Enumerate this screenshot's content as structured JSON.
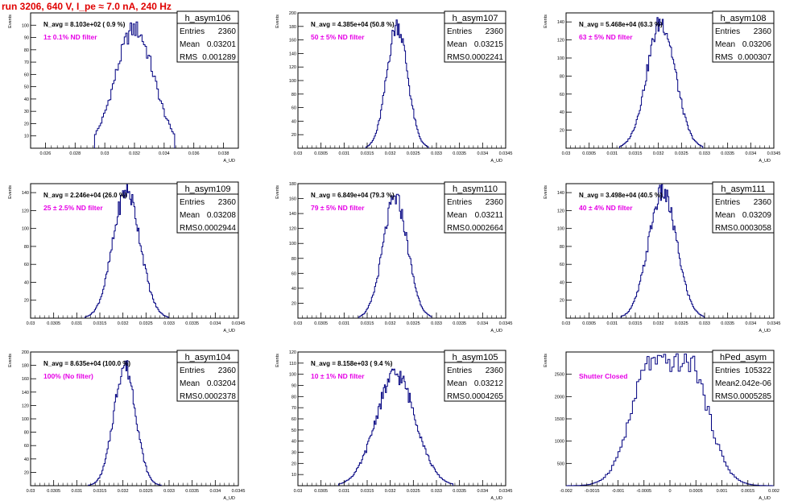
{
  "page_title": "run 3206,   640 V, I_pe ≈ 7.0 nA, 240 Hz",
  "stats_labels": {
    "entries": "Entries",
    "mean": "Mean",
    "rms": "RMS"
  },
  "colors": {
    "hist": "#000080",
    "annotation": "#e600e6",
    "title": "#e00000",
    "frame": "#000000"
  },
  "chart_data": [
    {
      "type": "histogram",
      "name": "h_asym106",
      "nlabel": "N_avg = 8.103e+02 ( 0.9 %)",
      "filter": "1± 0.1% ND filter",
      "stats": {
        "entries": "2360",
        "mean": "0.03201",
        "rms": "0.001289"
      },
      "ylabel": "Events",
      "xlabel": "A_UD",
      "xlim": [
        0.025,
        0.039
      ],
      "ylim": [
        0,
        110
      ],
      "xticks": [
        0.026,
        0.028,
        0.03,
        0.032,
        0.034,
        0.036,
        0.038
      ],
      "xticklabels": [
        "0.026",
        "0.028",
        "0.03",
        "0.032",
        "0.034",
        "0.036",
        "0.038"
      ],
      "yticks": [
        10,
        20,
        30,
        40,
        50,
        60,
        70,
        80,
        90,
        100
      ],
      "yticklabels": [
        "10",
        "20",
        "30",
        "40",
        "50",
        "60",
        "70",
        "80",
        "90",
        "100"
      ],
      "mean": 0.03201,
      "sigma": 0.001289,
      "peak": 97,
      "binw": 0.0001,
      "bins": 54
    },
    {
      "type": "histogram",
      "name": "h_asym107",
      "nlabel": "N_avg = 4.385e+04 (50.8 %)",
      "filter": "50 ± 5% ND filter",
      "stats": {
        "entries": "2360",
        "mean": "0.03215",
        "rms": "0.0002241"
      },
      "ylabel": "Events",
      "xlabel": "A_UD",
      "xlim": [
        0.03,
        0.0345
      ],
      "ylim": [
        0,
        200
      ],
      "xticks": [
        0.03,
        0.0305,
        0.031,
        0.0315,
        0.032,
        0.0325,
        0.033,
        0.0335,
        0.034,
        0.0345
      ],
      "xticklabels": [
        "0.03",
        "0.0305",
        "0.031",
        "0.0315",
        "0.032",
        "0.0325",
        "0.033",
        "0.0335",
        "0.034",
        "0.0345"
      ],
      "yticks": [
        20,
        40,
        60,
        80,
        100,
        120,
        140,
        160,
        180,
        200
      ],
      "yticklabels": [
        "20",
        "40",
        "60",
        "80",
        "100",
        "120",
        "140",
        "160",
        "180",
        "200"
      ],
      "mean": 0.03215,
      "sigma": 0.0002241,
      "peak": 182,
      "binw": 2.25e-05,
      "bins": 60
    },
    {
      "type": "histogram",
      "name": "h_asym108",
      "nlabel": "N_avg = 5.468e+04 (63.3 %)",
      "filter": "63 ± 5% ND filter",
      "stats": {
        "entries": "2360",
        "mean": "0.03206",
        "rms": "0.000307"
      },
      "ylabel": "Events",
      "xlabel": "A_UD",
      "xlim": [
        0.03,
        0.0345
      ],
      "ylim": [
        0,
        150
      ],
      "xticks": [
        0.03,
        0.0305,
        0.031,
        0.0315,
        0.032,
        0.0325,
        0.033,
        0.0335,
        0.034,
        0.0345
      ],
      "xticklabels": [
        "0.03",
        "0.0305",
        "0.031",
        "0.0315",
        "0.032",
        "0.0325",
        "0.033",
        "0.0335",
        "0.034",
        "0.0345"
      ],
      "yticks": [
        20,
        40,
        60,
        80,
        100,
        120,
        140
      ],
      "yticklabels": [
        "20",
        "40",
        "60",
        "80",
        "100",
        "120",
        "140"
      ],
      "mean": 0.03206,
      "sigma": 0.000307,
      "peak": 140,
      "binw": 2.25e-05,
      "bins": 80
    },
    {
      "type": "histogram",
      "name": "h_asym109",
      "nlabel": "N_avg = 2.246e+04 (26.0 %)",
      "filter": "25 ± 2.5% ND filter",
      "stats": {
        "entries": "2360",
        "mean": "0.03208",
        "rms": "0.0002944"
      },
      "ylabel": "Events",
      "xlabel": "A_UD",
      "xlim": [
        0.03,
        0.0345
      ],
      "ylim": [
        0,
        150
      ],
      "xticks": [
        0.03,
        0.0305,
        0.031,
        0.0315,
        0.032,
        0.0325,
        0.033,
        0.0335,
        0.034,
        0.0345
      ],
      "xticklabels": [
        "0.03",
        "0.0305",
        "0.031",
        "0.0315",
        "0.032",
        "0.0325",
        "0.033",
        "0.0335",
        "0.034",
        "0.0345"
      ],
      "yticks": [
        20,
        40,
        60,
        80,
        100,
        120,
        140
      ],
      "yticklabels": [
        "20",
        "40",
        "60",
        "80",
        "100",
        "120",
        "140"
      ],
      "mean": 0.03208,
      "sigma": 0.0002944,
      "peak": 142,
      "binw": 2.25e-05,
      "bins": 80
    },
    {
      "type": "histogram",
      "name": "h_asym110",
      "nlabel": "N_avg = 6.849e+04 (79.3 %)",
      "filter": "79 ± 5% ND filter",
      "stats": {
        "entries": "2360",
        "mean": "0.03211",
        "rms": "0.0002664"
      },
      "ylabel": "Events",
      "xlabel": "A_UD",
      "xlim": [
        0.03,
        0.0345
      ],
      "ylim": [
        0,
        180
      ],
      "xticks": [
        0.03,
        0.0305,
        0.031,
        0.0315,
        0.032,
        0.0325,
        0.033,
        0.0335,
        0.034,
        0.0345
      ],
      "xticklabels": [
        "0.03",
        "0.0305",
        "0.031",
        "0.0315",
        "0.032",
        "0.0325",
        "0.033",
        "0.0335",
        "0.034",
        "0.0345"
      ],
      "yticks": [
        20,
        40,
        60,
        80,
        100,
        120,
        140,
        160,
        180
      ],
      "yticklabels": [
        "20",
        "40",
        "60",
        "80",
        "100",
        "120",
        "140",
        "160",
        "180"
      ],
      "mean": 0.03211,
      "sigma": 0.0002664,
      "peak": 160,
      "binw": 2.25e-05,
      "bins": 70
    },
    {
      "type": "histogram",
      "name": "h_asym111",
      "nlabel": "N_avg = 3.498e+04 (40.5 %)",
      "filter": "40 ± 4% ND filter",
      "stats": {
        "entries": "2360",
        "mean": "0.03209",
        "rms": "0.0003058"
      },
      "ylabel": "Events",
      "xlabel": "A_UD",
      "xlim": [
        0.03,
        0.0345
      ],
      "ylim": [
        0,
        150
      ],
      "xticks": [
        0.03,
        0.0305,
        0.031,
        0.0315,
        0.032,
        0.0325,
        0.033,
        0.0335,
        0.034,
        0.0345
      ],
      "xticklabels": [
        "0.03",
        "0.0305",
        "0.031",
        "0.0315",
        "0.032",
        "0.0325",
        "0.033",
        "0.0335",
        "0.034",
        "0.0345"
      ],
      "yticks": [
        20,
        40,
        60,
        80,
        100,
        120,
        140
      ],
      "yticklabels": [
        "20",
        "40",
        "60",
        "80",
        "100",
        "120",
        "140"
      ],
      "mean": 0.03209,
      "sigma": 0.0003058,
      "peak": 140,
      "binw": 2.25e-05,
      "bins": 80
    },
    {
      "type": "histogram",
      "name": "h_asym104",
      "nlabel": "N_avg = 8.635e+04 (100.0 %)",
      "filter": "100% (No filter)",
      "stats": {
        "entries": "2360",
        "mean": "0.03204",
        "rms": "0.0002378"
      },
      "ylabel": "Events",
      "xlabel": "A_UD",
      "xlim": [
        0.03,
        0.0345
      ],
      "ylim": [
        0,
        200
      ],
      "xticks": [
        0.03,
        0.0305,
        0.031,
        0.0315,
        0.032,
        0.0325,
        0.033,
        0.0335,
        0.034,
        0.0345
      ],
      "xticklabels": [
        "0.03",
        "0.0305",
        "0.031",
        "0.0315",
        "0.032",
        "0.0325",
        "0.033",
        "0.0335",
        "0.034",
        "0.0345"
      ],
      "yticks": [
        20,
        40,
        60,
        80,
        100,
        120,
        140,
        160,
        180,
        200
      ],
      "yticklabels": [
        "20",
        "40",
        "60",
        "80",
        "100",
        "120",
        "140",
        "160",
        "180",
        "200"
      ],
      "mean": 0.03204,
      "sigma": 0.0002378,
      "peak": 180,
      "binw": 2.25e-05,
      "bins": 70
    },
    {
      "type": "histogram",
      "name": "h_asym105",
      "nlabel": "N_avg = 8.158e+03 ( 9.4 %)",
      "filter": "10 ± 1% ND filter",
      "stats": {
        "entries": "2360",
        "mean": "0.03212",
        "rms": "0.0004265"
      },
      "ylabel": "Events",
      "xlabel": "A_UD",
      "xlim": [
        0.03,
        0.0345
      ],
      "ylim": [
        0,
        120
      ],
      "xticks": [
        0.03,
        0.0305,
        0.031,
        0.0315,
        0.032,
        0.0325,
        0.033,
        0.0335,
        0.034,
        0.0345
      ],
      "xticklabels": [
        "0.03",
        "0.0305",
        "0.031",
        "0.0315",
        "0.032",
        "0.0325",
        "0.033",
        "0.0335",
        "0.034",
        "0.0345"
      ],
      "yticks": [
        10,
        20,
        30,
        40,
        50,
        60,
        70,
        80,
        90,
        100,
        110,
        120
      ],
      "yticklabels": [
        "10",
        "20",
        "30",
        "40",
        "50",
        "60",
        "70",
        "80",
        "90",
        "100",
        "110",
        "120"
      ],
      "mean": 0.03212,
      "sigma": 0.0004265,
      "peak": 100,
      "binw": 2.25e-05,
      "bins": 110
    },
    {
      "type": "histogram",
      "name": "hPed_asym",
      "nlabel": "",
      "filter": "Shutter Closed",
      "stats": {
        "entries": "105322",
        "mean": "-2.042e-06",
        "rms": "0.0005285"
      },
      "ylabel": "Events",
      "xlabel": "A_UD",
      "xlim": [
        -0.002,
        0.002
      ],
      "ylim": [
        0,
        3000
      ],
      "xticks": [
        -0.002,
        -0.0015,
        -0.001,
        -0.0005,
        0,
        0.0005,
        0.001,
        0.0015,
        0.002
      ],
      "xticklabels": [
        "-0.002",
        "-0.0015",
        "-0.001",
        "-0.0005",
        "0",
        "0.0005",
        "0.001",
        "0.0015",
        "0.002"
      ],
      "yticks": [
        500,
        1000,
        1500,
        2000,
        2500
      ],
      "yticklabels": [
        "500",
        "1000",
        "1500",
        "2000",
        "2500"
      ],
      "mean": -2.042e-06,
      "sigma": 0.0005285,
      "peak": 2750,
      "binw": 4e-05,
      "bins": 100,
      "shape": "bimodal"
    }
  ]
}
